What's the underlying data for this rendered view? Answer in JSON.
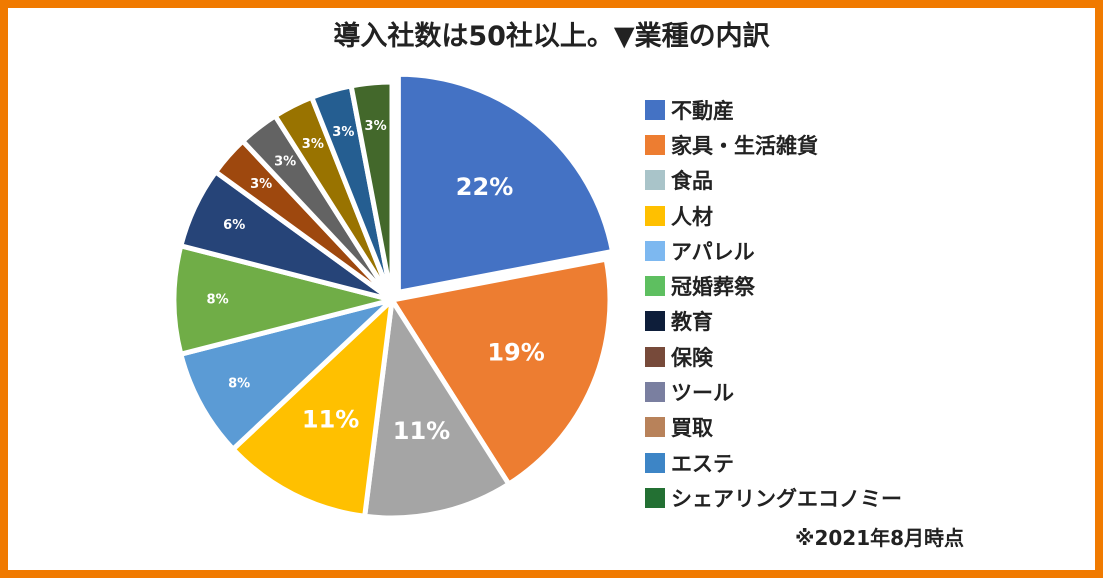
{
  "chart_data": {
    "type": "pie",
    "title": "導入社数は50社以上。▼業種の内訳",
    "categories": [
      "不動産",
      "家具・生活雑貨",
      "食品",
      "人材",
      "アパレル",
      "冠婚葬祭",
      "教育",
      "保険",
      "ツール",
      "買取",
      "エステ",
      "シェアリングエコノミー"
    ],
    "values": [
      22,
      19,
      11,
      11,
      8,
      8,
      6,
      3,
      3,
      3,
      3,
      3
    ],
    "labels": [
      "22%",
      "19%",
      "11%",
      "11%",
      "8%",
      "8%",
      "6%",
      "3%",
      "3%",
      "3%",
      "3%",
      "3%"
    ],
    "slice_colors": [
      "#4472C4",
      "#ED7D31",
      "#A5A5A5",
      "#FFC000",
      "#5B9BD5",
      "#70AD47",
      "#264478",
      "#9E480E",
      "#636363",
      "#997300",
      "#255E91",
      "#43682B"
    ],
    "legend_colors": [
      "#4472C4",
      "#ED7D31",
      "#A9C4C9",
      "#FFC000",
      "#7DB8F0",
      "#5EBF60",
      "#0E1E3A",
      "#774A3A",
      "#7A7FA0",
      "#B8825A",
      "#3D85C6",
      "#237033"
    ],
    "legend_position": "right",
    "note": "※2021年8月時点"
  }
}
